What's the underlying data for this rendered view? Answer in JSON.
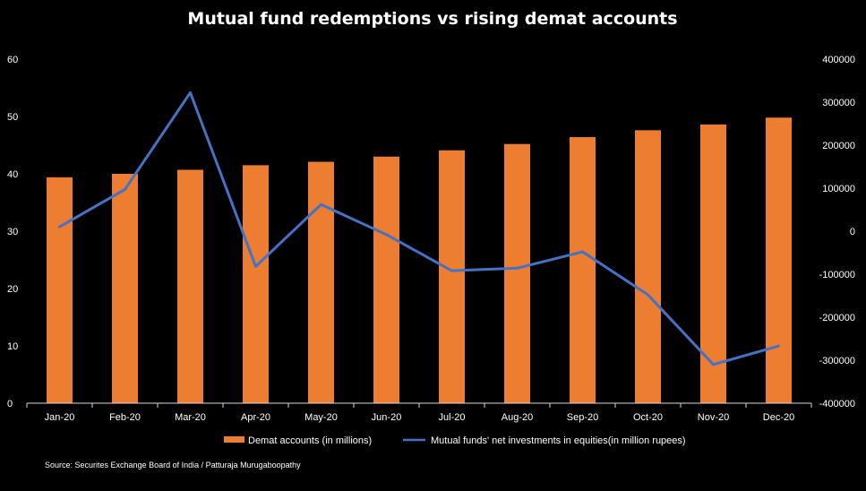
{
  "chart_data": {
    "type": "bar+line",
    "title": "Mutual fund redemptions vs rising demat accounts",
    "categories": [
      "Jan-20",
      "Feb-20",
      "Mar-20",
      "Apr-20",
      "May-20",
      "Jun-20",
      "Jul-20",
      "Aug-20",
      "Sep-20",
      "Oct-20",
      "Nov-20",
      "Dec-20"
    ],
    "series": [
      {
        "name": "Demat accounts (in millions)",
        "type": "bar",
        "axis": "left",
        "color": "#ED7D31",
        "values": [
          39.4,
          40.0,
          40.7,
          41.5,
          42.1,
          43.0,
          44.1,
          45.2,
          46.4,
          47.6,
          48.6,
          49.8
        ]
      },
      {
        "name": "Mutual funds' net investments in equities(in million rupees)",
        "type": "line",
        "axis": "right",
        "color": "#4472C4",
        "values": [
          10000,
          97000,
          322000,
          -82000,
          62000,
          -8000,
          -92000,
          -86000,
          -48000,
          -148000,
          -310000,
          -267000
        ]
      }
    ],
    "y_left": {
      "min": 0,
      "max": 60,
      "ticks": [
        "0",
        "10",
        "20",
        "30",
        "40",
        "50",
        "60"
      ]
    },
    "y_right": {
      "min": -400000,
      "max": 400000,
      "ticks": [
        "-400000",
        "-300000",
        "-200000",
        "-100000",
        "0",
        "100000",
        "200000",
        "300000",
        "400000"
      ]
    },
    "legend_position": "bottom"
  },
  "source": "Source: Securites Exchange Board of India / Patturaja Murugaboopathy"
}
